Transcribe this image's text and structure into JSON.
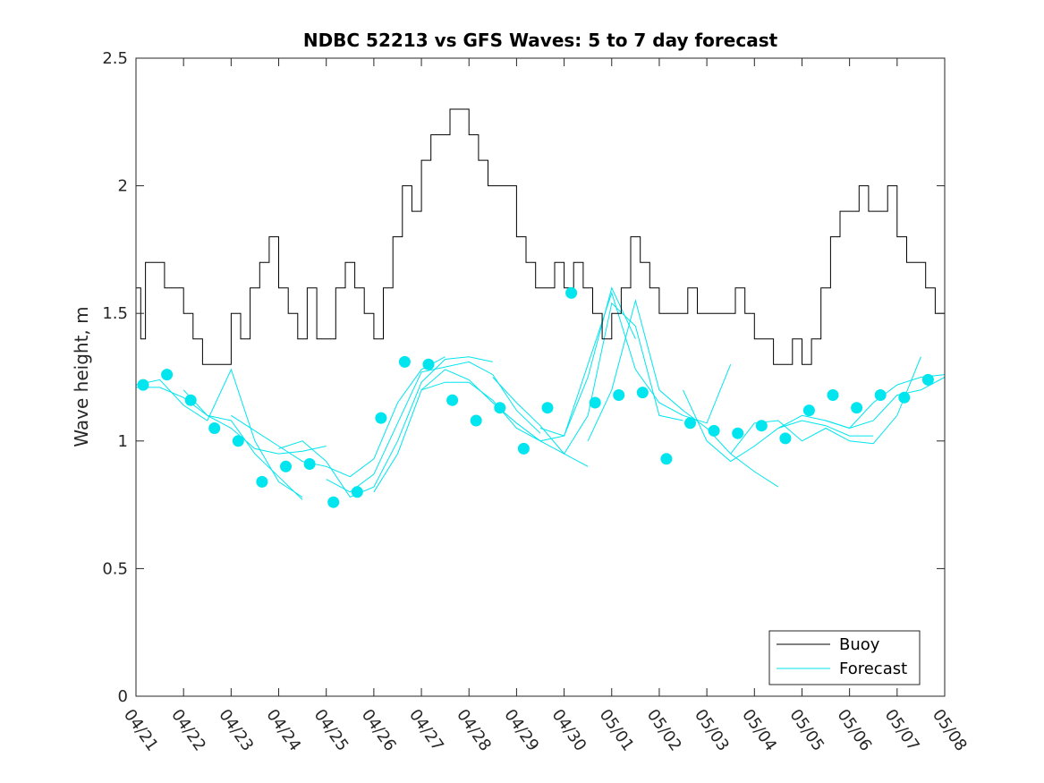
{
  "chart_data": {
    "type": "line",
    "title": "NDBC 52213 vs GFS Waves: 5 to 7 day forecast",
    "xlabel": "",
    "ylabel": "Wave height, m",
    "ylim": [
      0,
      2.5
    ],
    "xlim_days": [
      0,
      17
    ],
    "yticks": [
      0,
      0.5,
      1,
      1.5,
      2,
      2.5
    ],
    "ytick_labels": [
      "0",
      "0.5",
      "1",
      "1.5",
      "2",
      "2.5"
    ],
    "xtick_labels": [
      "04/21",
      "04/22",
      "04/23",
      "04/24",
      "04/25",
      "04/26",
      "04/27",
      "04/28",
      "04/29",
      "04/30",
      "05/01",
      "05/02",
      "05/03",
      "05/04",
      "05/05",
      "05/06",
      "05/07",
      "05/08"
    ],
    "grid": false,
    "legend_position": "bottom-right",
    "legend": [
      {
        "label": "Buoy",
        "color": "#000000"
      },
      {
        "label": "Forecast",
        "color": "#00e5ee"
      }
    ],
    "colors": {
      "buoy": "#000000",
      "forecast": "#00e5ee"
    },
    "series": [
      {
        "name": "Buoy",
        "kind": "line",
        "x": [
          0,
          0.1,
          0.2,
          0.3,
          0.4,
          0.6,
          0.8,
          1.0,
          1.2,
          1.4,
          1.6,
          1.8,
          2.0,
          2.2,
          2.4,
          2.6,
          2.8,
          3.0,
          3.2,
          3.4,
          3.6,
          3.8,
          4.0,
          4.2,
          4.4,
          4.6,
          4.8,
          5.0,
          5.2,
          5.4,
          5.6,
          5.8,
          6.0,
          6.2,
          6.4,
          6.6,
          6.8,
          7.0,
          7.2,
          7.4,
          7.6,
          7.8,
          8.0,
          8.2,
          8.4,
          8.6,
          8.8,
          9.0,
          9.2,
          9.4,
          9.6,
          9.8,
          10.0,
          10.2,
          10.4,
          10.6,
          10.8,
          11.0,
          11.2,
          11.4,
          11.6,
          11.8,
          12.0,
          12.2,
          12.4,
          12.6,
          12.8,
          13.0,
          13.2,
          13.4,
          13.6,
          13.8,
          14.0,
          14.2,
          14.4,
          14.6,
          14.8,
          15.0,
          15.2,
          15.4,
          15.6,
          15.8,
          16.0,
          16.2,
          16.4,
          16.6,
          16.8,
          17.0
        ],
        "y": [
          1.6,
          1.4,
          1.7,
          1.7,
          1.7,
          1.6,
          1.6,
          1.5,
          1.4,
          1.3,
          1.3,
          1.3,
          1.5,
          1.4,
          1.6,
          1.7,
          1.8,
          1.6,
          1.5,
          1.4,
          1.6,
          1.4,
          1.4,
          1.6,
          1.7,
          1.6,
          1.5,
          1.4,
          1.6,
          1.8,
          2.0,
          1.9,
          2.1,
          2.2,
          2.2,
          2.3,
          2.3,
          2.2,
          2.1,
          2.0,
          2.0,
          2.0,
          1.8,
          1.7,
          1.6,
          1.6,
          1.7,
          1.6,
          1.7,
          1.6,
          1.5,
          1.4,
          1.5,
          1.6,
          1.8,
          1.7,
          1.6,
          1.5,
          1.5,
          1.5,
          1.6,
          1.5,
          1.5,
          1.5,
          1.5,
          1.6,
          1.5,
          1.4,
          1.4,
          1.3,
          1.3,
          1.4,
          1.3,
          1.4,
          1.6,
          1.8,
          1.9,
          1.9,
          2.0,
          1.9,
          1.9,
          2.0,
          1.8,
          1.7,
          1.7,
          1.6,
          1.5,
          1.4
        ]
      },
      {
        "name": "Forecast",
        "kind": "markers",
        "x": [
          0.15,
          0.65,
          1.15,
          1.65,
          2.15,
          2.65,
          3.15,
          3.65,
          4.15,
          4.65,
          5.15,
          5.65,
          6.15,
          6.65,
          7.15,
          7.65,
          8.15,
          8.65,
          9.15,
          9.65,
          10.15,
          10.65,
          11.15,
          11.65,
          12.15,
          12.65,
          13.15,
          13.65,
          14.15,
          14.65,
          15.15,
          15.65,
          16.15,
          16.65
        ],
        "y": [
          1.22,
          1.26,
          1.16,
          1.05,
          1.0,
          0.84,
          0.9,
          0.91,
          0.76,
          0.8,
          1.09,
          1.31,
          1.3,
          1.16,
          1.08,
          1.13,
          0.97,
          1.13,
          1.58,
          1.15,
          1.18,
          1.19,
          0.93,
          1.07,
          1.04,
          1.03,
          1.06,
          1.01,
          1.12,
          1.18,
          1.13,
          1.18,
          1.17,
          1.24
        ]
      }
    ],
    "forecast_traces": [
      {
        "x": [
          0,
          0.5,
          1.0,
          1.5,
          2.0,
          2.5,
          3.0,
          3.5
        ],
        "y": [
          1.21,
          1.21,
          1.17,
          1.1,
          1.08,
          0.95,
          0.86,
          0.77
        ]
      },
      {
        "x": [
          0,
          0.5,
          1.0,
          1.5,
          2.0,
          2.5,
          3.0,
          3.5
        ],
        "y": [
          1.22,
          1.24,
          1.14,
          1.08,
          1.28,
          1.0,
          0.84,
          0.78
        ]
      },
      {
        "x": [
          1.0,
          1.5,
          2.0,
          2.5,
          3.0,
          3.5,
          4.0
        ],
        "y": [
          1.2,
          1.1,
          1.05,
          0.97,
          0.95,
          0.96,
          0.98
        ]
      },
      {
        "x": [
          2.0,
          2.5,
          3.0,
          3.5,
          4.0,
          4.5,
          5.0,
          5.5,
          6.0,
          6.5
        ],
        "y": [
          1.1,
          1.04,
          0.98,
          0.92,
          0.9,
          0.86,
          0.93,
          1.15,
          1.28,
          1.33
        ]
      },
      {
        "x": [
          3.0,
          3.5,
          4.0,
          4.5,
          5.0,
          5.5,
          6.0,
          6.5,
          7.0,
          7.5
        ],
        "y": [
          0.97,
          1.0,
          0.92,
          0.78,
          0.82,
          1.0,
          1.23,
          1.32,
          1.33,
          1.31
        ]
      },
      {
        "x": [
          4.0,
          4.5,
          5.0,
          5.5,
          6.0,
          6.5,
          7.0,
          7.5,
          8.0,
          8.5
        ],
        "y": [
          0.85,
          0.8,
          0.87,
          1.07,
          1.27,
          1.29,
          1.31,
          1.26,
          1.12,
          1.03
        ]
      },
      {
        "x": [
          5.0,
          5.5,
          6.0,
          6.5,
          7.0,
          7.5,
          8.0,
          8.5,
          9.0,
          9.5
        ],
        "y": [
          0.8,
          0.95,
          1.2,
          1.28,
          1.24,
          1.15,
          1.07,
          1.0,
          0.95,
          0.9
        ]
      },
      {
        "x": [
          6.0,
          6.5,
          7.0,
          7.5,
          8.0,
          8.5,
          9.0,
          9.5,
          10.0,
          10.5
        ],
        "y": [
          1.2,
          1.23,
          1.23,
          1.16,
          1.05,
          1.0,
          1.02,
          1.25,
          1.6,
          1.4
        ]
      },
      {
        "x": [
          7.5,
          8.0,
          8.5,
          9.0,
          9.5,
          10.0,
          10.5,
          11.0,
          11.5
        ],
        "y": [
          1.25,
          1.15,
          1.06,
          0.95,
          1.1,
          1.54,
          1.45,
          1.1,
          1.08
        ]
      },
      {
        "x": [
          8.5,
          9.0,
          9.5,
          10.0,
          10.5,
          11.0,
          11.5,
          12.0,
          12.5
        ],
        "y": [
          1.05,
          1.02,
          1.3,
          1.58,
          1.28,
          1.15,
          1.1,
          1.07,
          1.3
        ]
      },
      {
        "x": [
          9.5,
          10.0,
          10.5,
          11.0,
          11.5,
          12.0,
          12.5,
          13.0,
          13.5
        ],
        "y": [
          1.0,
          1.2,
          1.55,
          1.2,
          1.12,
          1.05,
          0.95,
          0.88,
          0.82
        ]
      },
      {
        "x": [
          11.5,
          12.0,
          12.5,
          13.0,
          13.5,
          14.0,
          14.5,
          15.0,
          15.5
        ],
        "y": [
          1.2,
          1.0,
          0.92,
          0.98,
          1.05,
          1.08,
          1.06,
          1.02,
          1.02
        ]
      },
      {
        "x": [
          12.5,
          13.0,
          13.5,
          14.0,
          14.5,
          15.0,
          15.5,
          16.0,
          16.5
        ],
        "y": [
          0.95,
          1.07,
          1.08,
          1.0,
          1.05,
          1.0,
          0.99,
          1.1,
          1.33
        ]
      },
      {
        "x": [
          13.5,
          14.0,
          14.5,
          15.0,
          15.5,
          16.0,
          16.5,
          17.0
        ],
        "y": [
          1.05,
          1.1,
          1.08,
          1.05,
          1.08,
          1.18,
          1.2,
          1.25
        ]
      },
      {
        "x": [
          14.5,
          15.0,
          15.5,
          16.0,
          16.5,
          17.0
        ],
        "y": [
          1.08,
          1.05,
          1.15,
          1.22,
          1.25,
          1.26
        ]
      }
    ]
  }
}
